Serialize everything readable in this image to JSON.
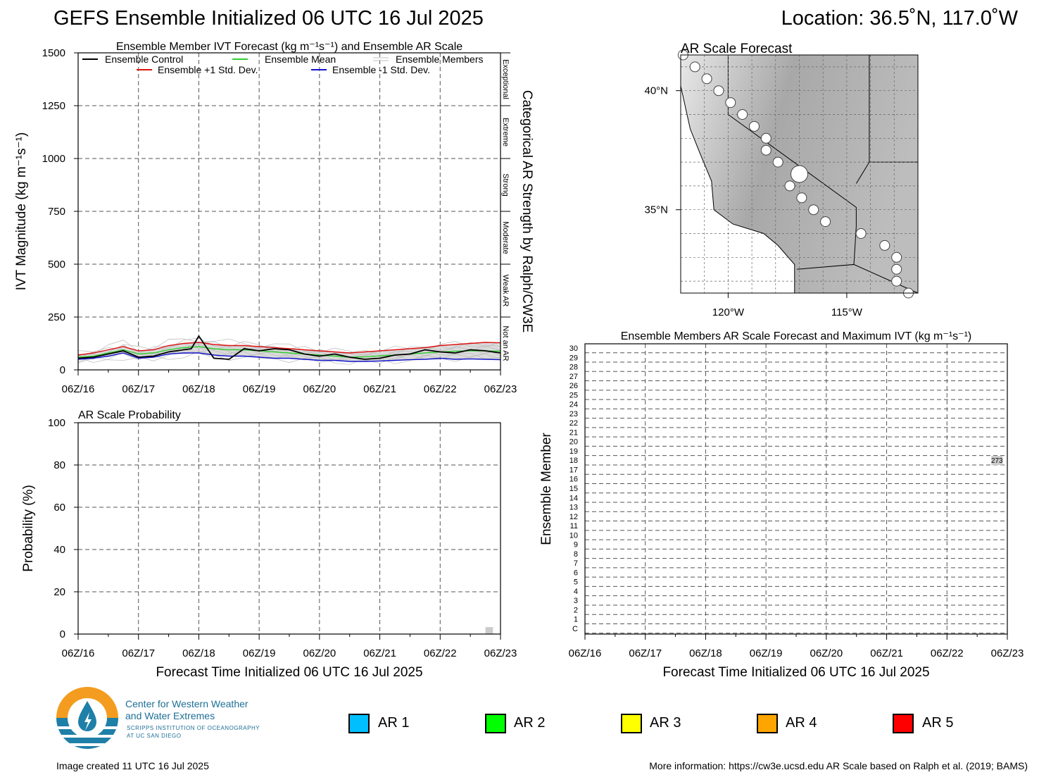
{
  "header": {
    "title": "GEFS Ensemble Initialized 06 UTC 16 Jul 2025",
    "location": "Location: 36.5˚N, 117.0˚W"
  },
  "chart_data": [
    {
      "id": "ivt",
      "type": "line",
      "title": "Ensemble Member IVT Forecast (kg m⁻¹s⁻¹) and Ensemble AR Scale",
      "ylabel": "IVT Magnitude (kg m⁻¹s⁻¹)",
      "right_label": "Categorical AR Strength by Ralph/CW3E",
      "ylim": [
        0,
        1500
      ],
      "yticks": [
        0,
        250,
        500,
        750,
        1000,
        1250,
        1500
      ],
      "xlim": [
        0,
        168
      ],
      "xtick_hours": [
        0,
        24,
        48,
        72,
        96,
        120,
        144,
        168
      ],
      "xtick_labels": [
        "06Z/16",
        "06Z/17",
        "06Z/18",
        "06Z/19",
        "06Z/20",
        "06Z/21",
        "06Z/22",
        "06Z/23"
      ],
      "categories": [
        {
          "label": "Not an AR",
          "lo": 0,
          "hi": 250
        },
        {
          "label": "Weak AR",
          "lo": 250,
          "hi": 500
        },
        {
          "label": "Moderate",
          "lo": 500,
          "hi": 750
        },
        {
          "label": "Strong",
          "lo": 750,
          "hi": 1000
        },
        {
          "label": "Extreme",
          "lo": 1000,
          "hi": 1250
        },
        {
          "label": "Exceptional",
          "lo": 1250,
          "hi": 1500
        }
      ],
      "legend": {
        "control": "Ensemble Control",
        "mean": "Ensemble Mean",
        "members": "Ensemble Members",
        "plus": "Ensemble +1 Std. Dev.",
        "minus": "Ensemble -1 Std. Dev."
      },
      "colors": {
        "control": "#000000",
        "mean": "#33cc33",
        "members": "#c0c0c0",
        "plus": "#dd1111",
        "minus": "#1111cc",
        "spread": "#cccccc"
      },
      "series": [
        {
          "name": "Ensemble Control",
          "x": [
            0,
            6,
            12,
            18,
            24,
            30,
            36,
            42,
            45,
            48,
            54,
            60,
            66,
            72,
            78,
            84,
            90,
            96,
            102,
            108,
            114,
            120,
            126,
            132,
            138,
            144,
            150,
            156,
            162,
            168
          ],
          "values": [
            55,
            60,
            75,
            90,
            60,
            65,
            85,
            95,
            100,
            160,
            55,
            50,
            100,
            90,
            100,
            95,
            75,
            65,
            75,
            60,
            50,
            55,
            70,
            75,
            95,
            85,
            80,
            95,
            90,
            80
          ]
        },
        {
          "name": "Ensemble Mean",
          "x": [
            0,
            6,
            12,
            18,
            24,
            30,
            36,
            42,
            48,
            54,
            60,
            66,
            72,
            78,
            84,
            90,
            96,
            102,
            108,
            114,
            120,
            126,
            132,
            138,
            144,
            150,
            156,
            162,
            168
          ],
          "values": [
            60,
            65,
            80,
            95,
            75,
            80,
            95,
            105,
            110,
            100,
            95,
            95,
            90,
            85,
            80,
            75,
            70,
            65,
            60,
            62,
            66,
            70,
            75,
            80,
            85,
            88,
            90,
            90,
            88
          ]
        },
        {
          "name": "Ensemble +1 Std. Dev.",
          "x": [
            0,
            6,
            12,
            18,
            24,
            30,
            36,
            42,
            48,
            54,
            60,
            66,
            72,
            78,
            84,
            90,
            96,
            102,
            108,
            114,
            120,
            126,
            132,
            138,
            144,
            150,
            156,
            162,
            168
          ],
          "values": [
            70,
            80,
            95,
            110,
            90,
            95,
            115,
            125,
            130,
            120,
            115,
            115,
            110,
            105,
            100,
            95,
            90,
            85,
            80,
            85,
            90,
            95,
            100,
            105,
            115,
            120,
            125,
            130,
            128
          ]
        },
        {
          "name": "Ensemble -1 Std. Dev.",
          "x": [
            0,
            6,
            12,
            18,
            24,
            30,
            36,
            42,
            48,
            54,
            60,
            66,
            72,
            78,
            84,
            90,
            96,
            102,
            108,
            114,
            120,
            126,
            132,
            138,
            144,
            150,
            156,
            162,
            168
          ],
          "values": [
            50,
            55,
            65,
            80,
            55,
            60,
            75,
            80,
            80,
            70,
            65,
            65,
            60,
            55,
            55,
            50,
            45,
            45,
            40,
            40,
            42,
            45,
            48,
            50,
            55,
            50,
            52,
            50,
            48
          ]
        }
      ]
    },
    {
      "id": "prob",
      "type": "bar",
      "title": "AR Scale Probability",
      "ylabel": "Probability (%)",
      "xlabel": "Forecast Time Initialized 06 UTC 16 Jul 2025",
      "ylim": [
        0,
        100
      ],
      "yticks": [
        0,
        20,
        40,
        60,
        80,
        100
      ],
      "xlim": [
        0,
        168
      ],
      "xtick_labels": [
        "06Z/16",
        "06Z/17",
        "06Z/18",
        "06Z/19",
        "06Z/20",
        "06Z/21",
        "06Z/22",
        "06Z/23"
      ],
      "bars": [
        {
          "x_start": 162,
          "x_end": 165,
          "value": 3.3,
          "color": "#cccccc"
        }
      ]
    },
    {
      "id": "members",
      "type": "heatmap",
      "title": "Ensemble Members AR Scale Forecast and Maximum IVT (kg m⁻¹s⁻¹)",
      "ylabel": "Ensemble Member",
      "xlabel": "Forecast Time Initialized 06 UTC 16 Jul 2025",
      "xlim": [
        0,
        168
      ],
      "xtick_labels": [
        "06Z/16",
        "06Z/17",
        "06Z/18",
        "06Z/19",
        "06Z/20",
        "06Z/21",
        "06Z/22",
        "06Z/23"
      ],
      "members": [
        "C",
        "1",
        "2",
        "3",
        "4",
        "5",
        "6",
        "7",
        "8",
        "9",
        "10",
        "11",
        "12",
        "13",
        "14",
        "15",
        "16",
        "17",
        "18",
        "19",
        "20",
        "21",
        "22",
        "23",
        "24",
        "25",
        "26",
        "27",
        "28",
        "29",
        "30"
      ],
      "annotations": [
        {
          "member": "18",
          "hour": 165,
          "text": "273",
          "color": "#cccccc"
        }
      ]
    },
    {
      "id": "map",
      "type": "scatter",
      "title": "AR Scale Forecast",
      "xticks": [
        "120°W",
        "115°W"
      ],
      "yticks": [
        "40°N",
        "35°N"
      ],
      "points": [
        {
          "lon": -121.9,
          "lat": 41.5,
          "size": "small"
        },
        {
          "lon": -121.4,
          "lat": 41.0,
          "size": "small"
        },
        {
          "lon": -120.9,
          "lat": 40.5,
          "size": "small"
        },
        {
          "lon": -120.4,
          "lat": 40.0,
          "size": "small"
        },
        {
          "lon": -119.9,
          "lat": 39.5,
          "size": "small"
        },
        {
          "lon": -119.4,
          "lat": 39.0,
          "size": "small"
        },
        {
          "lon": -118.9,
          "lat": 38.5,
          "size": "small"
        },
        {
          "lon": -118.4,
          "lat": 38.0,
          "size": "small"
        },
        {
          "lon": -118.4,
          "lat": 37.5,
          "size": "small"
        },
        {
          "lon": -117.9,
          "lat": 37.0,
          "size": "small"
        },
        {
          "lon": -117.0,
          "lat": 36.5,
          "size": "large"
        },
        {
          "lon": -117.4,
          "lat": 36.0,
          "size": "small"
        },
        {
          "lon": -116.9,
          "lat": 35.5,
          "size": "small"
        },
        {
          "lon": -116.4,
          "lat": 35.0,
          "size": "small"
        },
        {
          "lon": -115.9,
          "lat": 34.5,
          "size": "small"
        },
        {
          "lon": -114.4,
          "lat": 34.0,
          "size": "small"
        },
        {
          "lon": -113.4,
          "lat": 33.5,
          "size": "small"
        },
        {
          "lon": -112.9,
          "lat": 33.0,
          "size": "small"
        },
        {
          "lon": -112.9,
          "lat": 32.5,
          "size": "small"
        },
        {
          "lon": -112.9,
          "lat": 32.0,
          "size": "small"
        },
        {
          "lon": -112.4,
          "lat": 31.5,
          "size": "small"
        }
      ]
    }
  ],
  "legend_ar": [
    {
      "label": "AR 1",
      "color": "#00bfff"
    },
    {
      "label": "AR 2",
      "color": "#00ff00"
    },
    {
      "label": "AR 3",
      "color": "#ffff00"
    },
    {
      "label": "AR 4",
      "color": "#ffa500"
    },
    {
      "label": "AR 5",
      "color": "#ff0000"
    }
  ],
  "logo": {
    "line1": "Center for Western Weather",
    "line2": "and Water Extremes",
    "line3": "SCRIPPS INSTITUTION OF OCEANOGRAPHY",
    "line4": "AT UC SAN DIEGO"
  },
  "footer": {
    "created": "Image created 11 UTC 16 Jul 2025",
    "info": "More information: https://cw3e.ucsd.edu AR Scale based on Ralph et al. (2019; BAMS)"
  }
}
